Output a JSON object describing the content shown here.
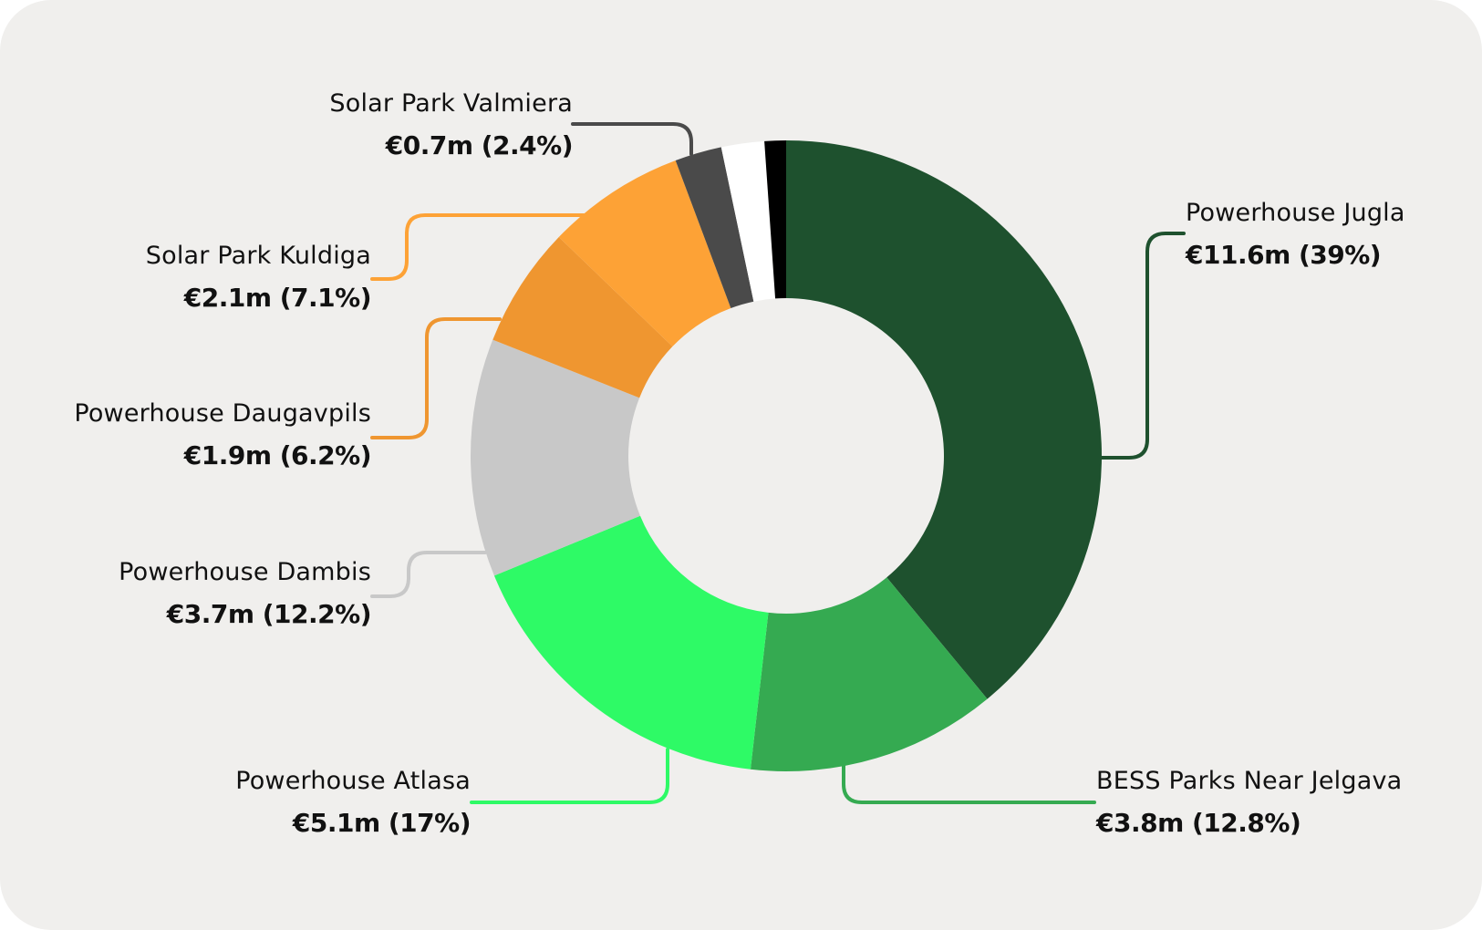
{
  "chart_data": {
    "type": "pie",
    "donut": true,
    "legend": "none",
    "slices": [
      {
        "name": "Powerhouse Jugla",
        "value": 11.6,
        "value_label": "€11.6m (39%)",
        "percent": 39.0,
        "color": "#1e512e"
      },
      {
        "name": "BESS Parks Near Jelgava",
        "value": 3.8,
        "value_label": "€3.8m (12.8%)",
        "percent": 12.8,
        "color": "#35aa51"
      },
      {
        "name": "Powerhouse Atlasa",
        "value": 5.1,
        "value_label": "€5.1m (17%)",
        "percent": 17.0,
        "color": "#2efa66"
      },
      {
        "name": "Powerhouse Dambis",
        "value": 3.7,
        "value_label": "€3.7m (12.2%)",
        "percent": 12.2,
        "color": "#c8c8c8"
      },
      {
        "name": "Powerhouse Daugavpils",
        "value": 1.9,
        "value_label": "€1.9m (6.2%)",
        "percent": 6.2,
        "color": "#ef9630"
      },
      {
        "name": "Solar Park Kuldiga",
        "value": 2.1,
        "value_label": "€2.1m (7.1%)",
        "percent": 7.1,
        "color": "#fda236"
      },
      {
        "name": "Solar Park Valmiera",
        "value": 0.7,
        "value_label": "€0.7m (2.4%)",
        "percent": 2.4,
        "color": "#4a4a4a"
      },
      {
        "name": "",
        "value": null,
        "value_label": "",
        "percent": 2.2,
        "color": "#ffffff"
      },
      {
        "name": "",
        "value": null,
        "value_label": "",
        "percent": 1.1,
        "color": "#000000"
      }
    ]
  }
}
